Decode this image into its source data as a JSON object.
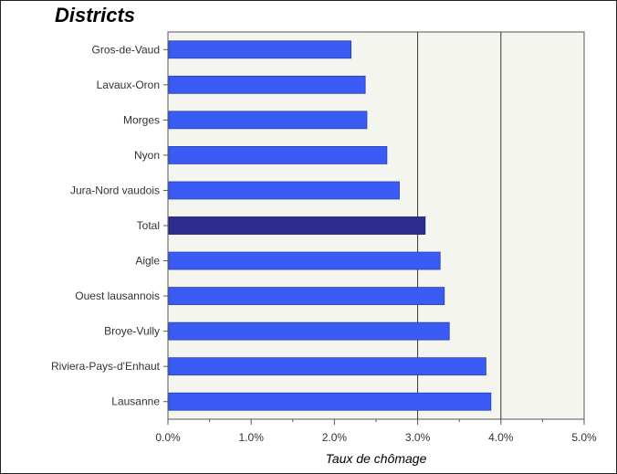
{
  "chart_data": {
    "type": "bar",
    "orientation": "horizontal",
    "title": "Districts",
    "xlabel": "Taux de chômage",
    "ylabel": "",
    "categories": [
      "Gros-de-Vaud",
      "Lavaux-Oron",
      "Morges",
      "Nyon",
      "Jura-Nord vaudois",
      "Total",
      "Aigle",
      "Ouest lausannois",
      "Broye-Vully",
      "Riviera-Pays-d'Enhaut",
      "Lausanne"
    ],
    "values": [
      2.2,
      2.37,
      2.39,
      2.63,
      2.78,
      3.09,
      3.27,
      3.32,
      3.38,
      3.82,
      3.88
    ],
    "xlim": [
      0,
      5
    ],
    "x_ticks": [
      "0.0%",
      "1.0%",
      "2.0%",
      "3.0%",
      "4.0%",
      "5.0%"
    ],
    "x_unit": "%",
    "grid": "vertical major lines at 3.0% and 4.0%",
    "legend": "none",
    "colors": {
      "bar": "#3a5cf5",
      "highlight_bar": "#2e2e8e",
      "plot_background": "#f5f5f0"
    },
    "highlight_category": "Total"
  }
}
